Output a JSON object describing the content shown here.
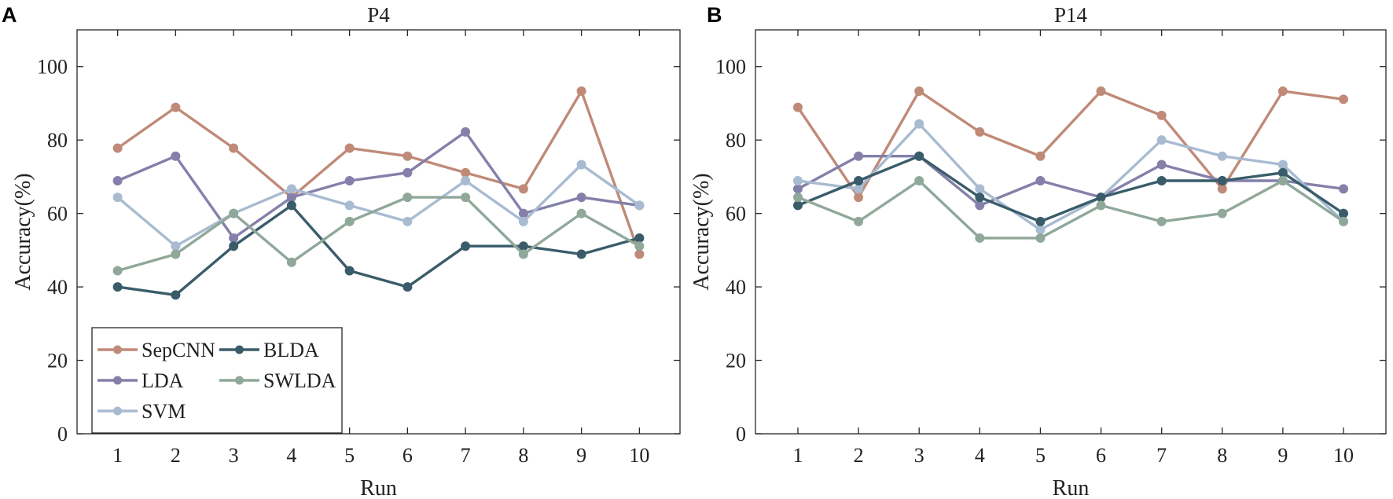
{
  "panels": [
    {
      "letter": "A",
      "chart_data": {
        "type": "line",
        "title": "P4",
        "xlabel": "Run",
        "ylabel": "Accuracy(%)",
        "x": [
          1,
          2,
          3,
          4,
          5,
          6,
          7,
          8,
          9,
          10
        ],
        "xlim": [
          0.3,
          10.7
        ],
        "ylim": [
          0,
          110
        ],
        "yticks": [
          0,
          20,
          40,
          60,
          80,
          100
        ],
        "grid": false,
        "legend": "bottom-left",
        "series": [
          {
            "name": "SepCNN",
            "color": "#c08a78",
            "values": [
              77.8,
              88.9,
              77.8,
              64.4,
              77.8,
              75.6,
              71.1,
              66.7,
              93.3,
              48.9
            ]
          },
          {
            "name": "LDA",
            "color": "#8480aa",
            "values": [
              68.9,
              75.6,
              53.3,
              64.4,
              68.9,
              71.1,
              82.2,
              60.0,
              64.4,
              62.2
            ]
          },
          {
            "name": "SVM",
            "color": "#a8bbd1",
            "values": [
              64.4,
              51.1,
              60.0,
              66.7,
              62.2,
              57.8,
              68.9,
              57.8,
              73.3,
              62.2
            ]
          },
          {
            "name": "BLDA",
            "color": "#3a5c6a",
            "values": [
              40.0,
              37.8,
              51.1,
              62.2,
              44.4,
              40.0,
              51.1,
              51.1,
              48.9,
              53.3
            ]
          },
          {
            "name": "SWLDA",
            "color": "#8fa89a",
            "values": [
              44.4,
              48.9,
              60.0,
              46.7,
              57.8,
              64.4,
              64.4,
              48.9,
              60.0,
              51.1
            ]
          }
        ]
      }
    },
    {
      "letter": "B",
      "chart_data": {
        "type": "line",
        "title": "P14",
        "xlabel": "Run",
        "ylabel": "Accuracy(%)",
        "x": [
          1,
          2,
          3,
          4,
          5,
          6,
          7,
          8,
          9,
          10
        ],
        "xlim": [
          0.3,
          10.7
        ],
        "ylim": [
          0,
          110
        ],
        "yticks": [
          0,
          20,
          40,
          60,
          80,
          100
        ],
        "grid": false,
        "legend": "none",
        "series": [
          {
            "name": "SepCNN",
            "color": "#c08a78",
            "values": [
              88.9,
              64.4,
              93.3,
              82.2,
              75.6,
              93.3,
              86.7,
              66.7,
              93.3,
              91.1
            ]
          },
          {
            "name": "LDA",
            "color": "#8480aa",
            "values": [
              66.7,
              75.6,
              75.6,
              62.2,
              68.9,
              64.4,
              73.3,
              68.9,
              68.9,
              66.7
            ]
          },
          {
            "name": "SVM",
            "color": "#a8bbd1",
            "values": [
              68.9,
              66.7,
              84.4,
              66.7,
              55.6,
              64.4,
              80.0,
              75.6,
              73.3,
              57.8
            ]
          },
          {
            "name": "BLDA",
            "color": "#3a5c6a",
            "values": [
              62.2,
              68.9,
              75.6,
              64.4,
              57.8,
              64.4,
              68.9,
              68.9,
              71.1,
              60.0
            ]
          },
          {
            "name": "SWLDA",
            "color": "#8fa89a",
            "values": [
              64.4,
              57.8,
              68.9,
              53.3,
              53.3,
              62.2,
              57.8,
              60.0,
              68.9,
              57.8
            ]
          }
        ]
      }
    }
  ]
}
